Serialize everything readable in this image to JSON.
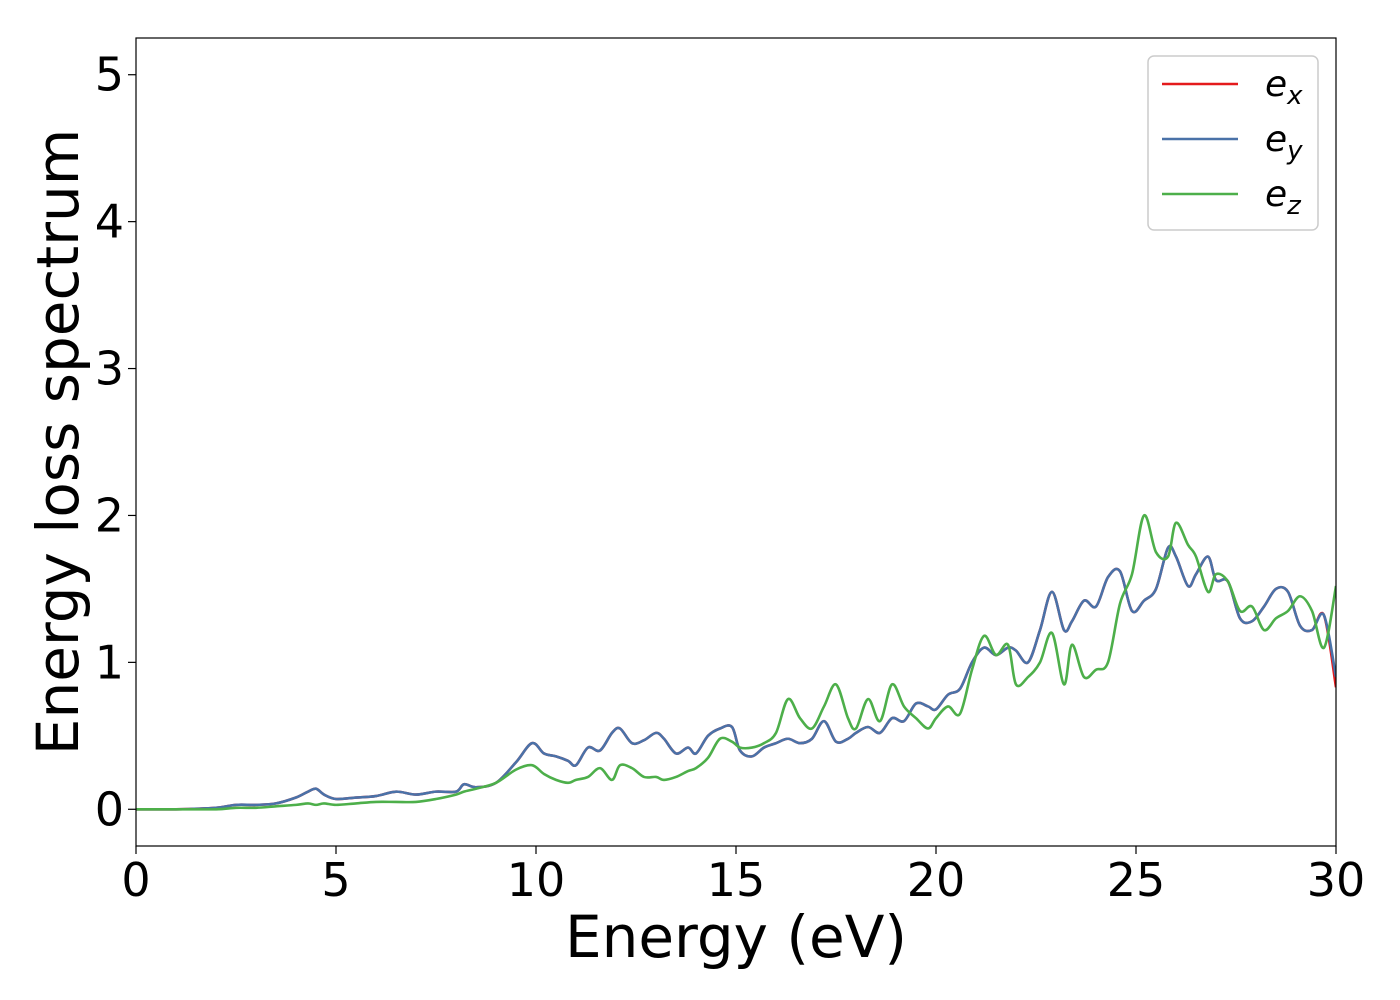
{
  "chart_data": {
    "type": "line",
    "title": "",
    "xlabel": "Energy (eV)",
    "ylabel": "Energy loss spectrum",
    "xlim": [
      0,
      30
    ],
    "ylim": [
      -0.25,
      5.25
    ],
    "xticks": [
      0,
      5,
      10,
      15,
      20,
      25,
      30
    ],
    "yticks": [
      0,
      1,
      2,
      3,
      4,
      5
    ],
    "xtick_labels": [
      "0",
      "5",
      "10",
      "15",
      "20",
      "25",
      "30"
    ],
    "ytick_labels": [
      "0",
      "1",
      "2",
      "3",
      "4",
      "5"
    ],
    "grid": false,
    "legend_position": "top-right",
    "series": [
      {
        "name": "e_x",
        "legend_base": "e",
        "legend_sub": "x",
        "color": "#e41a1c",
        "hidden_under": "e_y",
        "x": [
          0,
          1,
          2,
          2.5,
          3,
          3.5,
          4,
          4.3,
          4.5,
          4.7,
          5,
          5.5,
          6,
          6.5,
          7,
          7.5,
          8,
          8.2,
          8.5,
          9,
          9.5,
          9.9,
          10.2,
          10.5,
          10.8,
          11,
          11.3,
          11.6,
          11.9,
          12.1,
          12.4,
          12.7,
          13,
          13.2,
          13.5,
          13.8,
          14,
          14.3,
          14.6,
          14.9,
          15.1,
          15.4,
          15.7,
          16,
          16.3,
          16.6,
          16.9,
          17.2,
          17.5,
          17.8,
          18,
          18.3,
          18.6,
          18.9,
          19.2,
          19.5,
          19.8,
          20,
          20.3,
          20.6,
          20.9,
          21.2,
          21.5,
          21.8,
          22,
          22.3,
          22.6,
          22.9,
          23.2,
          23.4,
          23.7,
          24,
          24.3,
          24.6,
          24.9,
          25.2,
          25.5,
          25.8,
          26,
          26.3,
          26.5,
          26.8,
          27,
          27.3,
          27.6,
          27.9,
          28.2,
          28.5,
          28.8,
          29.1,
          29.4,
          29.7,
          30
        ],
        "y": [
          0.0,
          0.0,
          0.01,
          0.03,
          0.03,
          0.04,
          0.08,
          0.12,
          0.14,
          0.1,
          0.07,
          0.08,
          0.09,
          0.12,
          0.1,
          0.12,
          0.12,
          0.17,
          0.15,
          0.18,
          0.32,
          0.45,
          0.38,
          0.36,
          0.33,
          0.3,
          0.42,
          0.4,
          0.52,
          0.55,
          0.45,
          0.47,
          0.52,
          0.48,
          0.38,
          0.42,
          0.38,
          0.5,
          0.55,
          0.56,
          0.4,
          0.36,
          0.42,
          0.45,
          0.48,
          0.45,
          0.48,
          0.6,
          0.46,
          0.48,
          0.52,
          0.56,
          0.52,
          0.62,
          0.6,
          0.72,
          0.7,
          0.68,
          0.78,
          0.82,
          1.0,
          1.1,
          1.05,
          1.1,
          1.08,
          1.0,
          1.22,
          1.48,
          1.22,
          1.28,
          1.42,
          1.38,
          1.58,
          1.62,
          1.35,
          1.42,
          1.5,
          1.78,
          1.72,
          1.52,
          1.6,
          1.72,
          1.56,
          1.55,
          1.3,
          1.28,
          1.38,
          1.5,
          1.48,
          1.25,
          1.22,
          1.32,
          0.83
        ]
      },
      {
        "name": "e_y",
        "legend_base": "e",
        "legend_sub": "y",
        "color": "#4a72a8",
        "x": [
          0,
          1,
          2,
          2.5,
          3,
          3.5,
          4,
          4.3,
          4.5,
          4.7,
          5,
          5.5,
          6,
          6.5,
          7,
          7.5,
          8,
          8.2,
          8.5,
          9,
          9.5,
          9.9,
          10.2,
          10.5,
          10.8,
          11,
          11.3,
          11.6,
          11.9,
          12.1,
          12.4,
          12.7,
          13,
          13.2,
          13.5,
          13.8,
          14,
          14.3,
          14.6,
          14.9,
          15.1,
          15.4,
          15.7,
          16,
          16.3,
          16.6,
          16.9,
          17.2,
          17.5,
          17.8,
          18,
          18.3,
          18.6,
          18.9,
          19.2,
          19.5,
          19.8,
          20,
          20.3,
          20.6,
          20.9,
          21.2,
          21.5,
          21.8,
          22,
          22.3,
          22.6,
          22.9,
          23.2,
          23.4,
          23.7,
          24,
          24.3,
          24.6,
          24.9,
          25.2,
          25.5,
          25.8,
          26,
          26.3,
          26.5,
          26.8,
          27,
          27.3,
          27.6,
          27.9,
          28.2,
          28.5,
          28.8,
          29.1,
          29.4,
          29.7,
          30
        ],
        "y": [
          0.0,
          0.0,
          0.01,
          0.03,
          0.03,
          0.04,
          0.08,
          0.12,
          0.14,
          0.1,
          0.07,
          0.08,
          0.09,
          0.12,
          0.1,
          0.12,
          0.12,
          0.17,
          0.15,
          0.18,
          0.32,
          0.45,
          0.38,
          0.36,
          0.33,
          0.3,
          0.42,
          0.4,
          0.52,
          0.55,
          0.45,
          0.47,
          0.52,
          0.48,
          0.38,
          0.42,
          0.38,
          0.5,
          0.55,
          0.56,
          0.4,
          0.36,
          0.42,
          0.45,
          0.48,
          0.45,
          0.48,
          0.6,
          0.46,
          0.48,
          0.52,
          0.56,
          0.52,
          0.62,
          0.6,
          0.72,
          0.7,
          0.68,
          0.78,
          0.82,
          1.0,
          1.1,
          1.05,
          1.1,
          1.08,
          1.0,
          1.22,
          1.48,
          1.22,
          1.28,
          1.42,
          1.38,
          1.58,
          1.62,
          1.35,
          1.42,
          1.5,
          1.78,
          1.72,
          1.52,
          1.6,
          1.72,
          1.56,
          1.55,
          1.3,
          1.28,
          1.38,
          1.5,
          1.48,
          1.25,
          1.22,
          1.32,
          0.9
        ]
      },
      {
        "name": "e_z",
        "legend_base": "e",
        "legend_sub": "z",
        "color": "#4daf4a",
        "x": [
          0,
          1,
          2,
          2.5,
          3,
          3.5,
          4,
          4.3,
          4.5,
          4.7,
          5,
          5.5,
          6,
          6.5,
          7,
          7.5,
          8,
          8.2,
          8.5,
          9,
          9.5,
          9.9,
          10.2,
          10.5,
          10.8,
          11,
          11.3,
          11.6,
          11.9,
          12.1,
          12.4,
          12.7,
          13,
          13.2,
          13.5,
          13.8,
          14,
          14.3,
          14.6,
          14.9,
          15.1,
          15.4,
          15.7,
          16,
          16.3,
          16.6,
          16.9,
          17.2,
          17.5,
          17.8,
          18,
          18.3,
          18.6,
          18.9,
          19.2,
          19.5,
          19.8,
          20,
          20.3,
          20.6,
          20.9,
          21.2,
          21.5,
          21.8,
          22,
          22.3,
          22.6,
          22.9,
          23.2,
          23.4,
          23.7,
          24,
          24.3,
          24.6,
          24.9,
          25.2,
          25.5,
          25.8,
          26,
          26.3,
          26.5,
          26.8,
          27,
          27.3,
          27.6,
          27.9,
          28.2,
          28.5,
          28.8,
          29.1,
          29.4,
          29.7,
          30
        ],
        "y": [
          0.0,
          0.0,
          0.0,
          0.01,
          0.01,
          0.02,
          0.03,
          0.04,
          0.03,
          0.04,
          0.03,
          0.04,
          0.05,
          0.05,
          0.05,
          0.07,
          0.1,
          0.12,
          0.14,
          0.18,
          0.27,
          0.3,
          0.24,
          0.2,
          0.18,
          0.2,
          0.22,
          0.28,
          0.2,
          0.3,
          0.28,
          0.22,
          0.22,
          0.2,
          0.22,
          0.26,
          0.28,
          0.35,
          0.48,
          0.46,
          0.42,
          0.42,
          0.45,
          0.52,
          0.75,
          0.62,
          0.55,
          0.7,
          0.85,
          0.62,
          0.55,
          0.75,
          0.6,
          0.85,
          0.7,
          0.62,
          0.55,
          0.62,
          0.7,
          0.65,
          0.95,
          1.18,
          1.05,
          1.12,
          0.85,
          0.9,
          1.0,
          1.2,
          0.85,
          1.12,
          0.9,
          0.95,
          1.0,
          1.4,
          1.6,
          2.0,
          1.75,
          1.72,
          1.95,
          1.8,
          1.72,
          1.48,
          1.6,
          1.55,
          1.35,
          1.38,
          1.22,
          1.3,
          1.35,
          1.45,
          1.35,
          1.1,
          1.52
        ]
      }
    ]
  }
}
